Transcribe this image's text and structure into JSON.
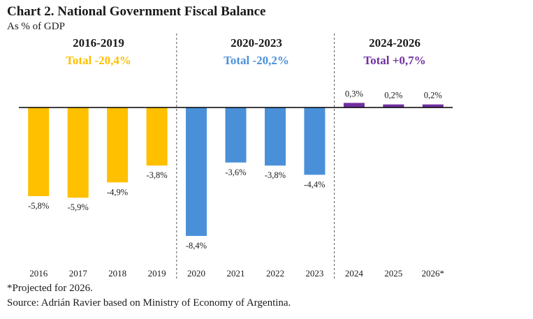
{
  "chart_data": {
    "type": "bar",
    "title": "Chart 2. National Government Fiscal Balance",
    "subtitle": "As % of GDP",
    "categories": [
      "2016",
      "2017",
      "2018",
      "2019",
      "2020",
      "2021",
      "2022",
      "2023",
      "2024",
      "2025",
      "2026*"
    ],
    "values": [
      -5.8,
      -5.9,
      -4.9,
      -3.8,
      -8.4,
      -3.6,
      -3.8,
      -4.4,
      0.3,
      0.2,
      0.2
    ],
    "value_labels": [
      "-5,8%",
      "-5,9%",
      "-4,9%",
      "-3,8%",
      "-8,4%",
      "-3,6%",
      "-3,8%",
      "-4,4%",
      "0,3%",
      "0,2%",
      "0,2%"
    ],
    "ylim": [
      -10.5,
      1.0
    ],
    "periods": [
      {
        "label": "2016-2019",
        "total": "Total -20,4%",
        "color": "#FFC000",
        "start": 0,
        "end": 3
      },
      {
        "label": "2020-2023",
        "total": "Total -20,2%",
        "color": "#4A90D9",
        "start": 4,
        "end": 7
      },
      {
        "label": "2024-2026",
        "total": "Total +0,7%",
        "color": "#7030A0",
        "start": 8,
        "end": 10
      }
    ],
    "grid": false,
    "legend": "none"
  },
  "notes": {
    "projected": "*Projected for 2026.",
    "source": "Source: Adrián Ravier based on Ministry of Economy of Argentina."
  }
}
